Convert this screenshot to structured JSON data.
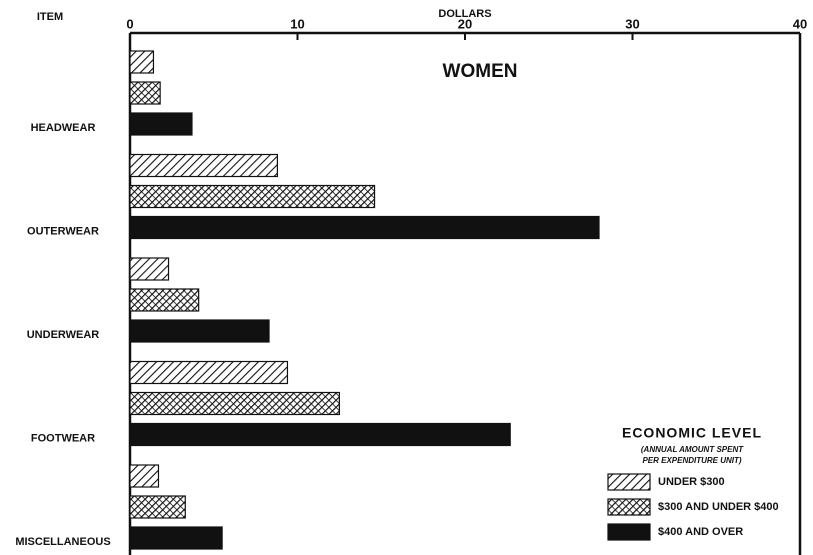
{
  "chart_data": {
    "type": "barh",
    "title": "WOMEN",
    "x_label": "DOLLARS",
    "y_label": "ITEM",
    "categories": [
      "HEADWEAR",
      "OUTERWEAR",
      "UNDERWEAR",
      "FOOTWEAR",
      "MISCELLANEOUS"
    ],
    "series": [
      {
        "name": "UNDER $300",
        "color": "#111111",
        "pattern": "hatch",
        "values": [
          1.4,
          8.8,
          2.3,
          9.4,
          1.7
        ]
      },
      {
        "name": "$300 AND UNDER $400",
        "color": "#111111",
        "pattern": "crosshatch",
        "values": [
          1.8,
          14.6,
          4.1,
          12.5,
          3.3
        ]
      },
      {
        "name": "$400 AND OVER",
        "color": "#111111",
        "pattern": "solid",
        "values": [
          3.7,
          28.0,
          8.3,
          22.7,
          5.5
        ]
      }
    ],
    "xlim": [
      0,
      40
    ],
    "xticks": [
      0,
      10,
      20,
      30,
      40
    ],
    "legend_title": "ECONOMIC LEVEL",
    "legend_subtitle": [
      "(ANNUAL AMOUNT SPENT",
      "PER EXPENDITURE UNIT)"
    ],
    "legend_position": "lower right"
  }
}
